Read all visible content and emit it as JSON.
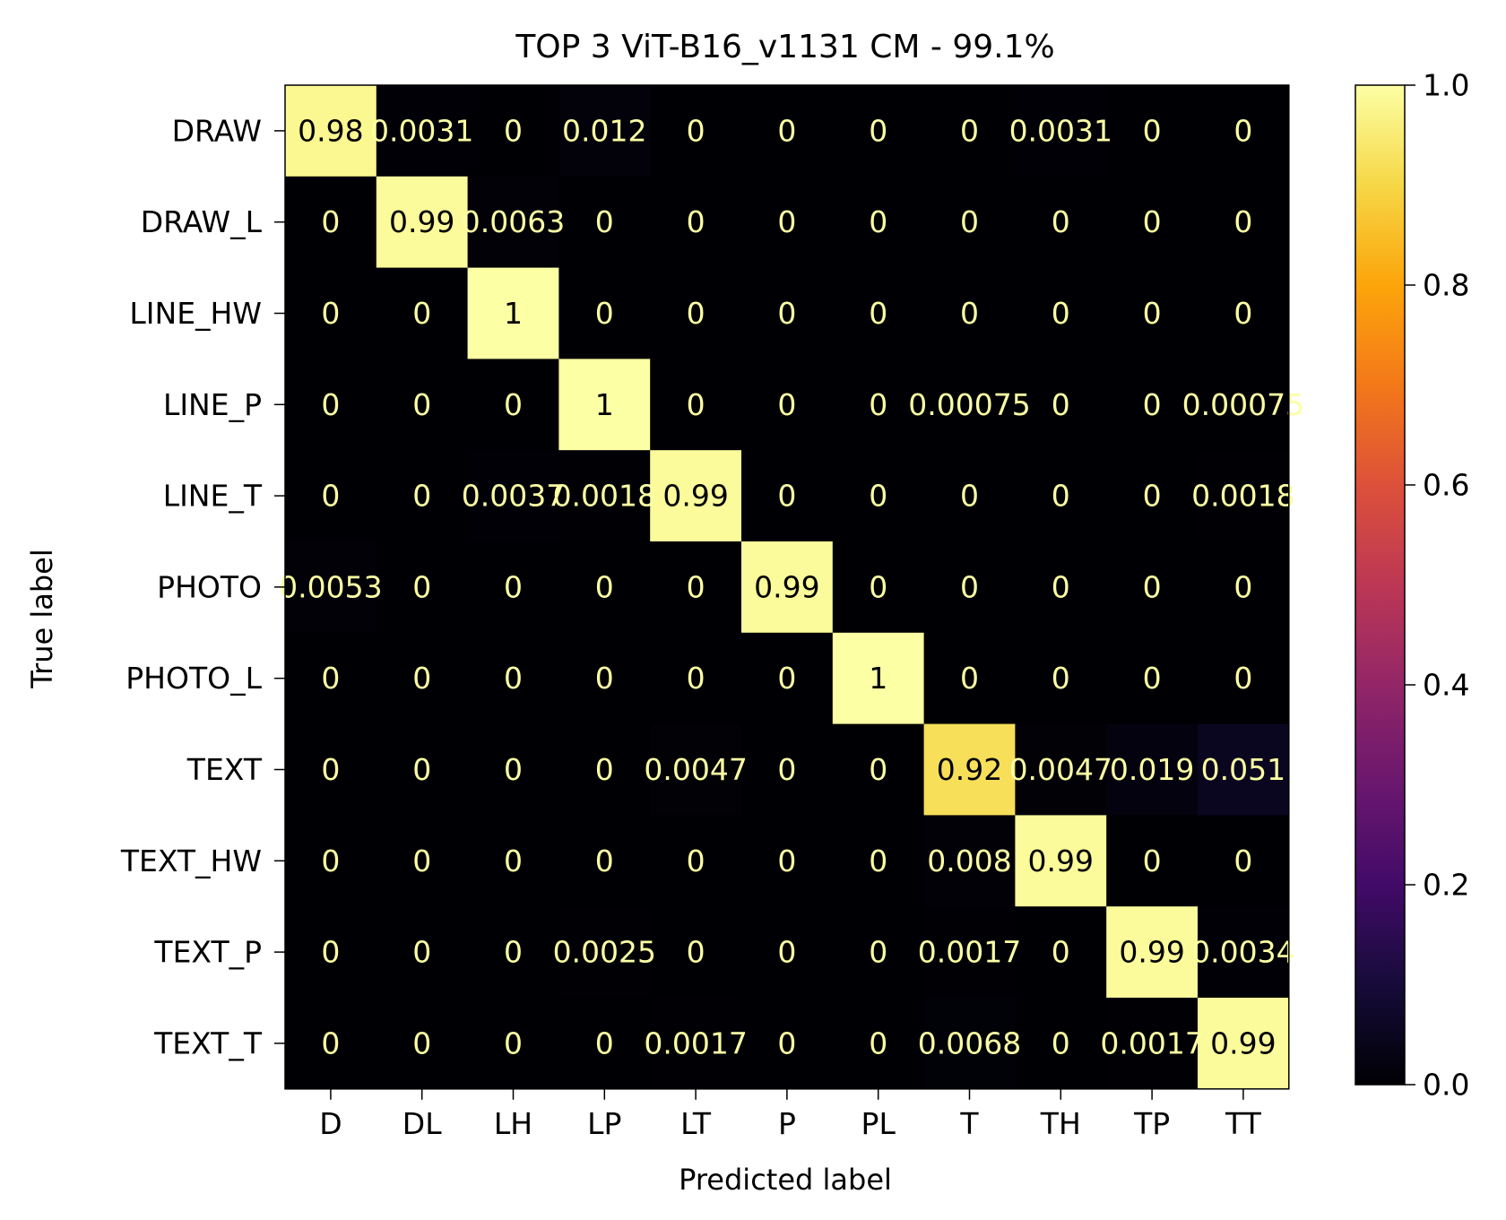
{
  "chart_data": {
    "type": "heatmap",
    "title": "TOP 3 ViT-B16_v1131 CM  - 99.1%",
    "xlabel": "Predicted label",
    "ylabel": "True label",
    "x_categories": [
      "D",
      "DL",
      "LH",
      "LP",
      "LT",
      "P",
      "PL",
      "T",
      "TH",
      "TP",
      "TT"
    ],
    "y_categories": [
      "DRAW",
      "DRAW_L",
      "LINE_HW",
      "LINE_P",
      "LINE_T",
      "PHOTO",
      "PHOTO_L",
      "TEXT",
      "TEXT_HW",
      "TEXT_P",
      "TEXT_T"
    ],
    "values": [
      [
        0.98,
        0.0031,
        0,
        0.012,
        0,
        0,
        0,
        0,
        0.0031,
        0,
        0
      ],
      [
        0,
        0.99,
        0.0063,
        0,
        0,
        0,
        0,
        0,
        0,
        0,
        0
      ],
      [
        0,
        0,
        1,
        0,
        0,
        0,
        0,
        0,
        0,
        0,
        0
      ],
      [
        0,
        0,
        0,
        1,
        0,
        0,
        0,
        0.00075,
        0,
        0,
        0.00075
      ],
      [
        0,
        0,
        0.0037,
        0.0018,
        0.99,
        0,
        0,
        0,
        0,
        0,
        0.0018
      ],
      [
        0.0053,
        0,
        0,
        0,
        0,
        0.99,
        0,
        0,
        0,
        0,
        0
      ],
      [
        0,
        0,
        0,
        0,
        0,
        0,
        1,
        0,
        0,
        0,
        0
      ],
      [
        0,
        0,
        0,
        0,
        0.0047,
        0,
        0,
        0.92,
        0.0047,
        0.019,
        0.051
      ],
      [
        0,
        0,
        0,
        0,
        0,
        0,
        0,
        0.008,
        0.99,
        0,
        0
      ],
      [
        0,
        0,
        0,
        0.0025,
        0,
        0,
        0,
        0.0017,
        0,
        0.99,
        0.0034
      ],
      [
        0,
        0,
        0,
        0,
        0.0017,
        0,
        0,
        0.0068,
        0,
        0.0017,
        0.99
      ]
    ],
    "cell_labels": [
      [
        "0.98",
        "0.0031",
        "0",
        "0.012",
        "0",
        "0",
        "0",
        "0",
        "0.0031",
        "0",
        "0"
      ],
      [
        "0",
        "0.99",
        "0.0063",
        "0",
        "0",
        "0",
        "0",
        "0",
        "0",
        "0",
        "0"
      ],
      [
        "0",
        "0",
        "1",
        "0",
        "0",
        "0",
        "0",
        "0",
        "0",
        "0",
        "0"
      ],
      [
        "0",
        "0",
        "0",
        "1",
        "0",
        "0",
        "0",
        "0.00075",
        "0",
        "0",
        "0.00075"
      ],
      [
        "0",
        "0",
        "0.0037",
        "0.0018",
        "0.99",
        "0",
        "0",
        "0",
        "0",
        "0",
        "0.0018"
      ],
      [
        "0.0053",
        "0",
        "0",
        "0",
        "0",
        "0.99",
        "0",
        "0",
        "0",
        "0",
        "0"
      ],
      [
        "0",
        "0",
        "0",
        "0",
        "0",
        "0",
        "1",
        "0",
        "0",
        "0",
        "0"
      ],
      [
        "0",
        "0",
        "0",
        "0",
        "0.0047",
        "0",
        "0",
        "0.92",
        "0.0047",
        "0.019",
        "0.051"
      ],
      [
        "0",
        "0",
        "0",
        "0",
        "0",
        "0",
        "0",
        "0.008",
        "0.99",
        "0",
        "0"
      ],
      [
        "0",
        "0",
        "0",
        "0.0025",
        "0",
        "0",
        "0",
        "0.0017",
        "0",
        "0.99",
        "0.0034"
      ],
      [
        "0",
        "0",
        "0",
        "0",
        "0.0017",
        "0",
        "0",
        "0.0068",
        "0",
        "0.0017",
        "0.99"
      ]
    ],
    "colormap": "inferno",
    "colorbar": {
      "range": [
        0,
        1
      ],
      "ticks": [
        0,
        0.2,
        0.4,
        0.6,
        0.8,
        1.0
      ],
      "tick_labels": [
        "0.0",
        "0.2",
        "0.4",
        "0.6",
        "0.8",
        "1.0"
      ]
    },
    "grid": false
  }
}
